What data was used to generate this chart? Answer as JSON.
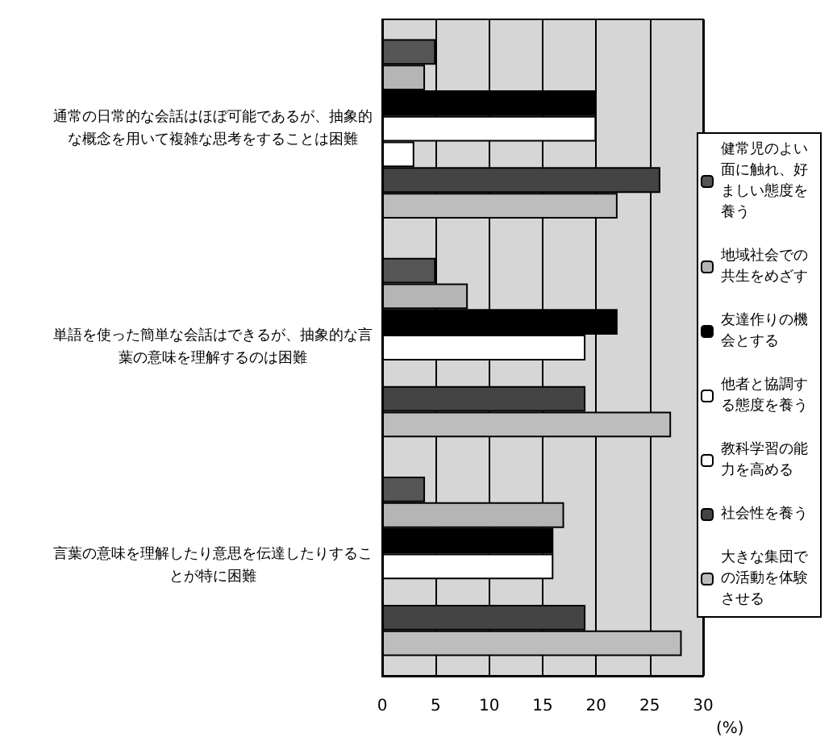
{
  "chart_data": {
    "type": "bar",
    "orientation": "horizontal",
    "xlabel": "(%)",
    "categories": [
      "通常の日常的な会話はほぼ可能であるが、抽象的な概念を用いて複雑な思考をすることは困難",
      "単語を使った簡単な会話はできるが、抽象的な言葉の意味を理解するのは困難",
      "言葉の意味を理解したり意思を伝達したりすることが特に困難"
    ],
    "series": [
      {
        "name": "健常児のよい面に触れ、好ましい態度を養う",
        "color": "#555555",
        "values": [
          5,
          5,
          4
        ]
      },
      {
        "name": "地域社会での共生をめざす",
        "color": "#b5b5b5",
        "values": [
          4,
          8,
          17
        ]
      },
      {
        "name": "友達作りの機会とする",
        "color": "#000000",
        "values": [
          20,
          22,
          16
        ]
      },
      {
        "name": "他者と協調する態度を養う",
        "color": "#ffffff",
        "values": [
          20,
          19,
          16
        ]
      },
      {
        "name": "教科学習の能力を高める",
        "color": "#fefefe",
        "values": [
          3,
          null,
          null
        ]
      },
      {
        "name": "社会性を養う",
        "color": "#444444",
        "values": [
          26,
          19,
          19
        ]
      },
      {
        "name": "大きな集団での活動を体験させる",
        "color": "#bdbdbd",
        "values": [
          22,
          27,
          28
        ]
      }
    ],
    "xlim": [
      0,
      30
    ],
    "xticks": [
      0,
      5,
      10,
      15,
      20,
      25,
      30
    ],
    "grid": "x",
    "legend": "right"
  }
}
